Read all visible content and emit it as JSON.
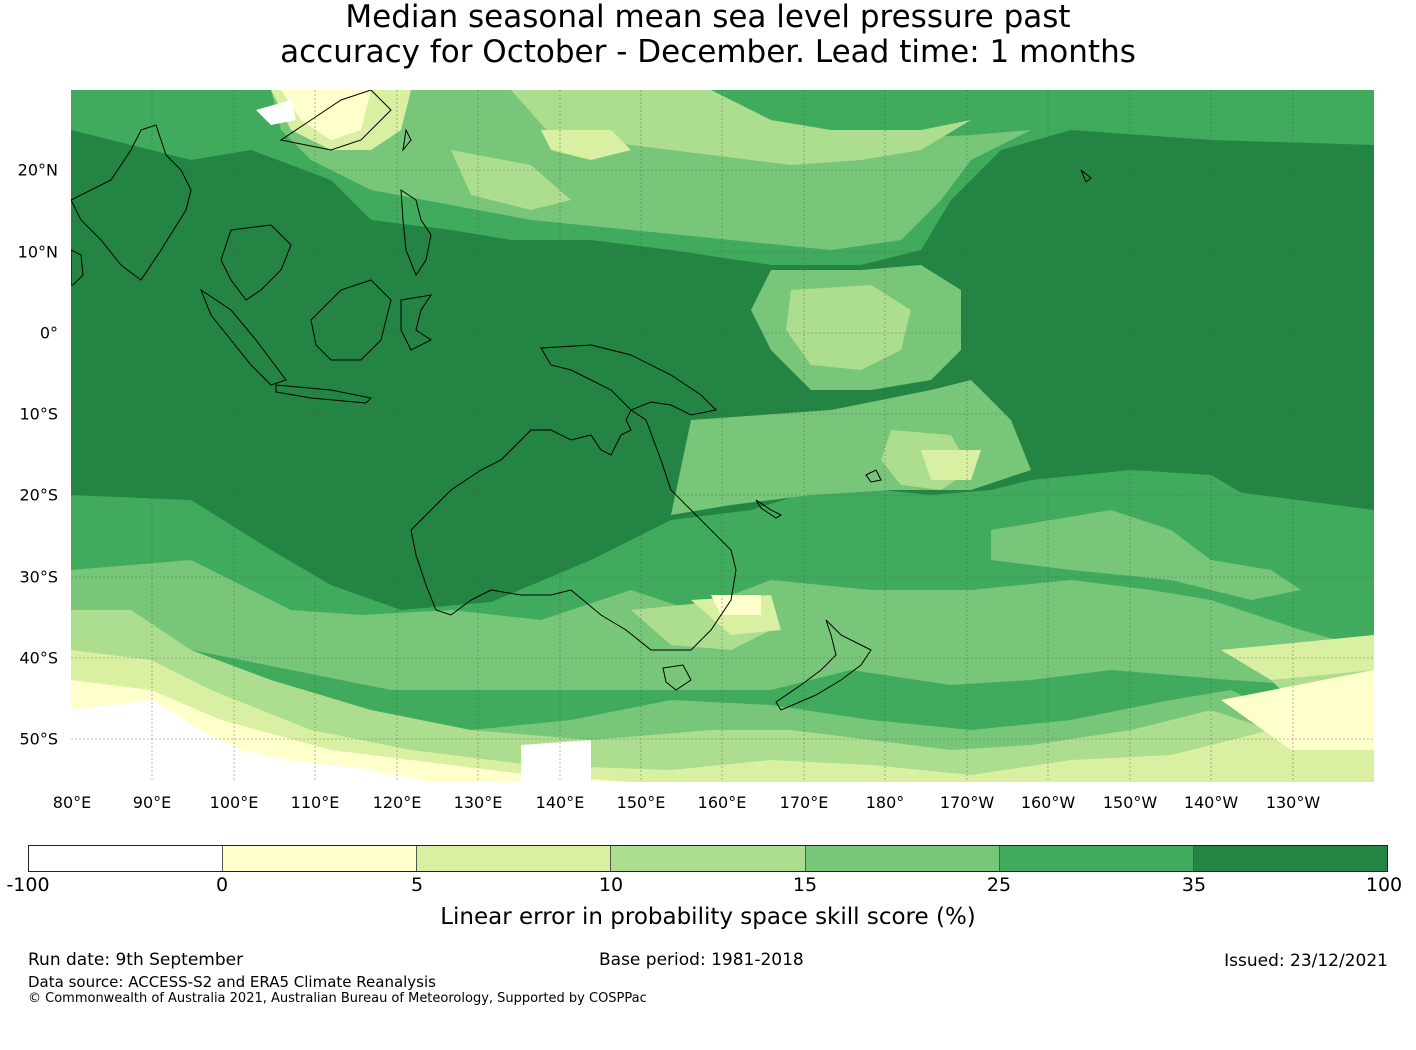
{
  "title": {
    "line1": "Median seasonal mean sea level pressure past",
    "line2": "accuracy for October - December. Lead time: 1 months"
  },
  "map": {
    "lat_labels": [
      "20°N",
      "10°N",
      "0°",
      "10°S",
      "20°S",
      "30°S",
      "40°S",
      "50°S"
    ],
    "lon_labels": [
      "80°E",
      "90°E",
      "100°E",
      "110°E",
      "120°E",
      "130°E",
      "140°E",
      "150°E",
      "160°E",
      "170°E",
      "180°",
      "170°W",
      "160°W",
      "150°W",
      "140°W",
      "130°W"
    ],
    "lat_range": [
      -55,
      30
    ],
    "lon_range": [
      80,
      240
    ],
    "gridlines": true
  },
  "colorbar": {
    "ticks": [
      "-100",
      "0",
      "5",
      "10",
      "15",
      "25",
      "35",
      "100"
    ],
    "colors": [
      "#ffffff",
      "#ffffcc",
      "#d9f0a3",
      "#addd8e",
      "#78c679",
      "#41ab5d",
      "#238443"
    ],
    "label": "Linear error in probability space skill score (%)"
  },
  "footer": {
    "run_date": "Run date: 9th September",
    "base_period": "Base period: 1981-2018",
    "issued": "Issued: 23/12/2021",
    "data_source": "Data source: ACCESS-S2 and ERA5 Climate Reanalysis",
    "copyright": "© Commonwealth of Australia 2021, Australian Bureau of Meteorology, Supported by COSPPac"
  }
}
